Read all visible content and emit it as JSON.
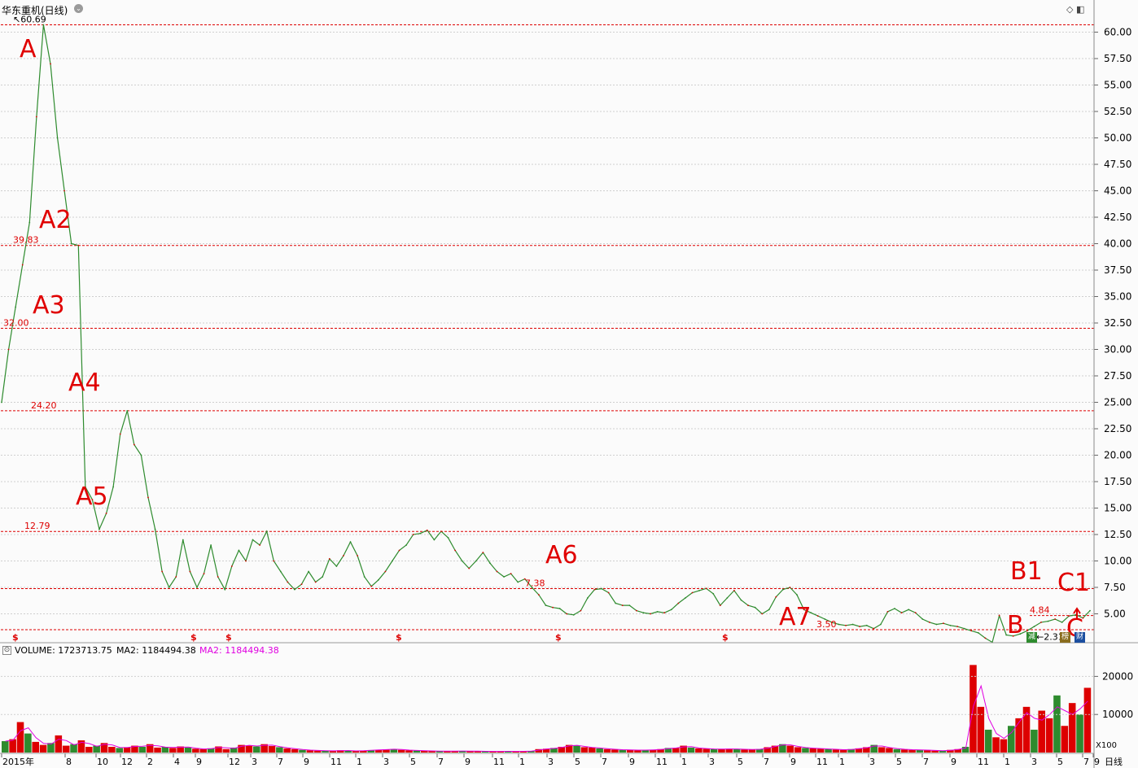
{
  "title": "华东重机(日线)",
  "title_button": "⌄",
  "top_icons": "◇ ◧",
  "timeframe_label": "日线",
  "volume_header": {
    "volume_label": "VOLUME: 1723713.75",
    "ma2_label": "MA2: 1184494.38",
    "ma2_label_alt": "MA2: 1184494.38"
  },
  "volume_unit": "X100",
  "flags": [
    "减",
    "榜",
    "财"
  ],
  "chart_data": [
    {
      "type": "line",
      "title": "",
      "xlabel": "",
      "ylabel": "",
      "ylim": [
        2.5,
        61.5
      ],
      "grid": true,
      "y_ticks": [
        5.0,
        7.5,
        10.0,
        12.5,
        15.0,
        17.5,
        20.0,
        22.5,
        25.0,
        27.5,
        30.0,
        32.5,
        35.0,
        37.5,
        40.0,
        42.5,
        45.0,
        47.5,
        50.0,
        52.5,
        55.0,
        57.5,
        60.0
      ],
      "x_tick_labels": [
        "2015年",
        "8",
        "10",
        "12",
        "2",
        "4",
        "9",
        "12",
        "3",
        "7",
        "9",
        "11",
        "1",
        "3",
        "5",
        "7",
        "9",
        "11",
        "1",
        "3",
        "5",
        "7",
        "9",
        "11",
        "1",
        "3",
        "5",
        "7",
        "9",
        "11",
        "1",
        "3",
        "5",
        "7",
        "9",
        "11",
        "1",
        "3",
        "5",
        "7",
        "9"
      ],
      "series": [
        {
          "values": [
            25,
            30,
            34,
            38,
            42,
            52,
            60.69,
            57,
            50,
            45,
            40,
            39.83,
            17,
            15.8,
            13,
            14.5,
            17,
            22,
            24.2,
            21,
            20,
            16,
            13,
            9,
            7.5,
            8.5,
            12,
            9,
            7.5,
            8.8,
            11.5,
            8.5,
            7.3,
            9.5,
            11,
            10,
            12,
            11.5,
            12.8,
            10,
            9,
            8,
            7.3,
            7.8,
            9,
            8,
            8.5,
            10.2,
            9.5,
            10.5,
            11.8,
            10.5,
            8.5,
            7.6,
            8.2,
            9,
            10,
            11,
            11.5,
            12.5,
            12.6,
            12.9,
            12,
            12.8,
            12.2,
            11,
            10,
            9.3,
            10,
            10.8,
            9.8,
            9,
            8.5,
            8.8,
            8,
            8.3,
            7.5,
            6.8,
            5.8,
            5.6,
            5.5,
            5,
            4.9,
            5.3,
            6.5,
            7.3,
            7.38,
            7,
            6,
            5.8,
            5.8,
            5.3,
            5.1,
            5,
            5.2,
            5.1,
            5.4,
            6,
            6.5,
            7,
            7.2,
            7.4,
            6.9,
            5.8,
            6.5,
            7.2,
            6.3,
            5.8,
            5.6,
            5,
            5.4,
            6.6,
            7.3,
            7.5,
            6.8,
            5.4,
            5.1,
            4.8,
            4.5,
            4.2,
            4,
            3.9,
            4,
            3.8,
            3.9,
            3.6,
            4,
            5.2,
            5.5,
            5.1,
            5.4,
            5.1,
            4.5,
            4.2,
            4,
            4.1,
            3.9,
            3.8,
            3.6,
            3.4,
            3.2,
            2.7,
            2.31,
            4.84,
            3,
            2.9,
            3.1,
            3.4,
            3.8,
            4.2,
            4.3,
            4.5,
            4.2,
            4.8,
            4.9,
            4.6,
            5.3
          ]
        }
      ],
      "reference_lines": [
        {
          "value": 60.69,
          "label": "60.69",
          "annotation": "A"
        },
        {
          "value": 39.83,
          "label": "39.83",
          "annotation": "A2"
        },
        {
          "value": 32.0,
          "label": "32.00",
          "annotation": "A3"
        },
        {
          "value": 24.2,
          "label": "24.20",
          "annotation": "A4"
        },
        {
          "value": 12.79,
          "label": "12.79",
          "annotation": "A5"
        },
        {
          "value": 7.38,
          "label": "7.38",
          "annotation": "A6"
        },
        {
          "value": 3.5,
          "label": "3.50",
          "annotation": "A7"
        },
        {
          "value": 4.84,
          "label": "4.84",
          "annotation": "B1"
        },
        {
          "value": 2.31,
          "label": "2.31",
          "annotation": "B"
        }
      ],
      "annotations": [
        "C1",
        "C"
      ]
    },
    {
      "type": "bar",
      "title": "",
      "ylim": [
        0,
        25000
      ],
      "y_ticks": [
        10000,
        20000
      ],
      "values": [
        3000,
        3500,
        8000,
        5000,
        2800,
        2000,
        2500,
        4500,
        1800,
        2200,
        3200,
        1500,
        1800,
        2500,
        1500,
        1200,
        1400,
        1800,
        1500,
        2200,
        1300,
        1500,
        1200,
        1600,
        1300,
        1000,
        900,
        1100,
        1600,
        900,
        1300,
        2000,
        1800,
        1600,
        2200,
        1700,
        1400,
        1100,
        900,
        700,
        600,
        500,
        500,
        400,
        600,
        450,
        420,
        500,
        650,
        700,
        850,
        900,
        700,
        600,
        520,
        450,
        400,
        380,
        350,
        420,
        400,
        380,
        350,
        300,
        280,
        320,
        300,
        300,
        330,
        400,
        900,
        1000,
        1200,
        1500,
        2000,
        1800,
        1400,
        1300,
        1100,
        900,
        800,
        700,
        700,
        600,
        700,
        700,
        900,
        1200,
        1200,
        1800,
        1300,
        1100,
        1000,
        900,
        900,
        1000,
        900,
        800,
        800,
        900,
        1400,
        1800,
        2200,
        1800,
        1400,
        1200,
        1100,
        1000,
        900,
        800,
        700,
        900,
        1100,
        1400,
        2000,
        1400,
        1200,
        900,
        800,
        700,
        700,
        600,
        500,
        500,
        700,
        900,
        1500,
        23000,
        12000,
        6000,
        4000,
        3500,
        7000,
        9000,
        12000,
        6000,
        11000,
        9000,
        15000,
        7000,
        13000,
        10000,
        17000
      ]
    }
  ]
}
